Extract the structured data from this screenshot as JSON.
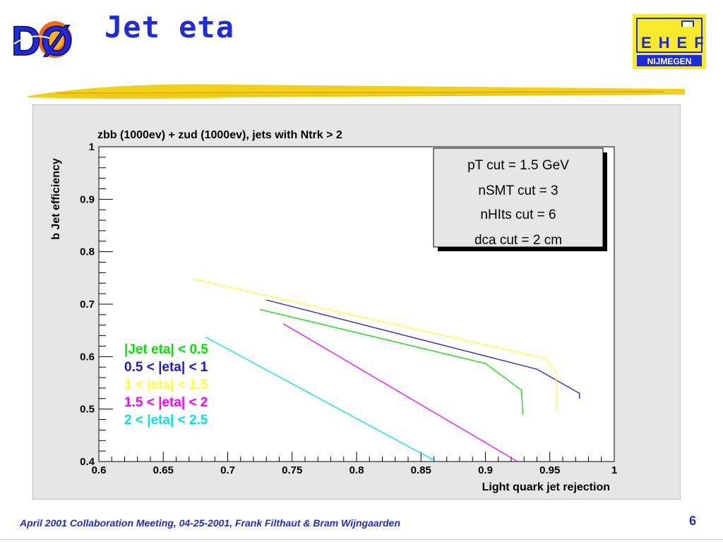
{
  "header": {
    "title": "Jet eta",
    "logo_left_text": "DØ",
    "logo_right_top": "EHEF",
    "logo_right_bottom": "NIJMEGEN"
  },
  "footer": {
    "text": "April 2001 Collaboration Meeting, 04-25-2001, Frank Filthaut & Bram Wijngaarden",
    "page_number": "6"
  },
  "colors": {
    "accent_blue": "#1f2bd6",
    "frame_bg": "#e6e6e6",
    "plot_bg": "#ffffff",
    "brush_yellow": "#f2cf1a"
  },
  "chart_data": {
    "type": "line",
    "title": "zbb (1000ev) + zud (1000ev), jets with Ntrk > 2",
    "xlabel": "Light quark jet rejection",
    "ylabel": "b Jet efficiency",
    "xlim": [
      0.6,
      1.0
    ],
    "ylim": [
      0.4,
      1.0
    ],
    "xticks": [
      0.6,
      0.65,
      0.7,
      0.75,
      0.8,
      0.85,
      0.9,
      0.95,
      1.0
    ],
    "xtick_labels": [
      "0.6",
      "0.65",
      "0.7",
      "0.75",
      "0.8",
      "0.85",
      "0.9",
      "0.95",
      "1"
    ],
    "yticks": [
      0.4,
      0.5,
      0.6,
      0.7,
      0.8,
      0.9,
      1.0
    ],
    "ytick_labels": [
      "0.4",
      "0.5",
      "0.6",
      "0.7",
      "0.8",
      "0.9",
      "1"
    ],
    "grid": false,
    "legend_position": "lower-left",
    "info_box": [
      "pT cut = 1.5 GeV",
      "nSMT cut = 3",
      "nHIts cut = 6",
      "dca cut = 2 cm"
    ],
    "series": [
      {
        "name": "|Jet eta| < 0.5",
        "color": "#00e400",
        "x": [
          0.725,
          0.9,
          0.928,
          0.929
        ],
        "y": [
          0.69,
          0.587,
          0.536,
          0.49
        ]
      },
      {
        "name": "0.5 < |eta| < 1",
        "color": "#1a1ad6",
        "x": [
          0.73,
          0.94,
          0.973,
          0.973
        ],
        "y": [
          0.708,
          0.576,
          0.53,
          0.52
        ]
      },
      {
        "name": "1 < |eta| < 1.5",
        "color": "#ffff33",
        "x": [
          0.673,
          0.946,
          0.955,
          0.955
        ],
        "y": [
          0.748,
          0.597,
          0.57,
          0.495
        ]
      },
      {
        "name": "1.5 < |eta| < 2",
        "color": "#ff00ff",
        "x": [
          0.743,
          0.925
        ],
        "y": [
          0.663,
          0.4
        ]
      },
      {
        "name": "2 < |eta| < 2.5",
        "color": "#00e5e5",
        "x": [
          0.683,
          0.862
        ],
        "y": [
          0.637,
          0.4
        ]
      }
    ]
  }
}
